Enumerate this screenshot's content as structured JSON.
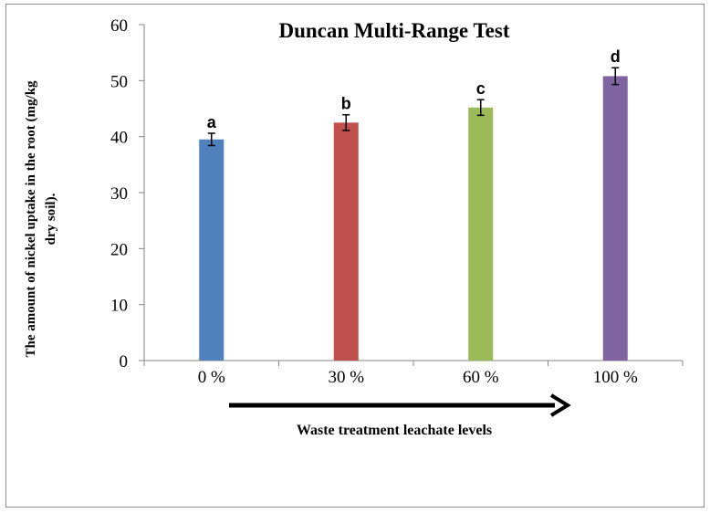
{
  "chart_data": {
    "type": "bar",
    "title": "Duncan Multi-Range Test",
    "xlabel": "Waste treatment leachate levels",
    "ylabel_line1": "The amount of nickel uptake in the root (mg/kg",
    "ylabel_line2": "dry soil).",
    "categories": [
      "0 %",
      "30 %",
      "60 %",
      "100 %"
    ],
    "values": [
      39.5,
      42.5,
      45.2,
      50.8
    ],
    "errors": [
      1.1,
      1.4,
      1.4,
      1.5
    ],
    "letters": [
      "a",
      "b",
      "c",
      "d"
    ],
    "colors": [
      "#4f81bd",
      "#c0504d",
      "#9bbb59",
      "#8064a2"
    ],
    "ylim": [
      0,
      60
    ],
    "yticks": [
      "0",
      "10",
      "20",
      "30",
      "40",
      "50",
      "60"
    ],
    "grid": false,
    "legend": "none"
  }
}
